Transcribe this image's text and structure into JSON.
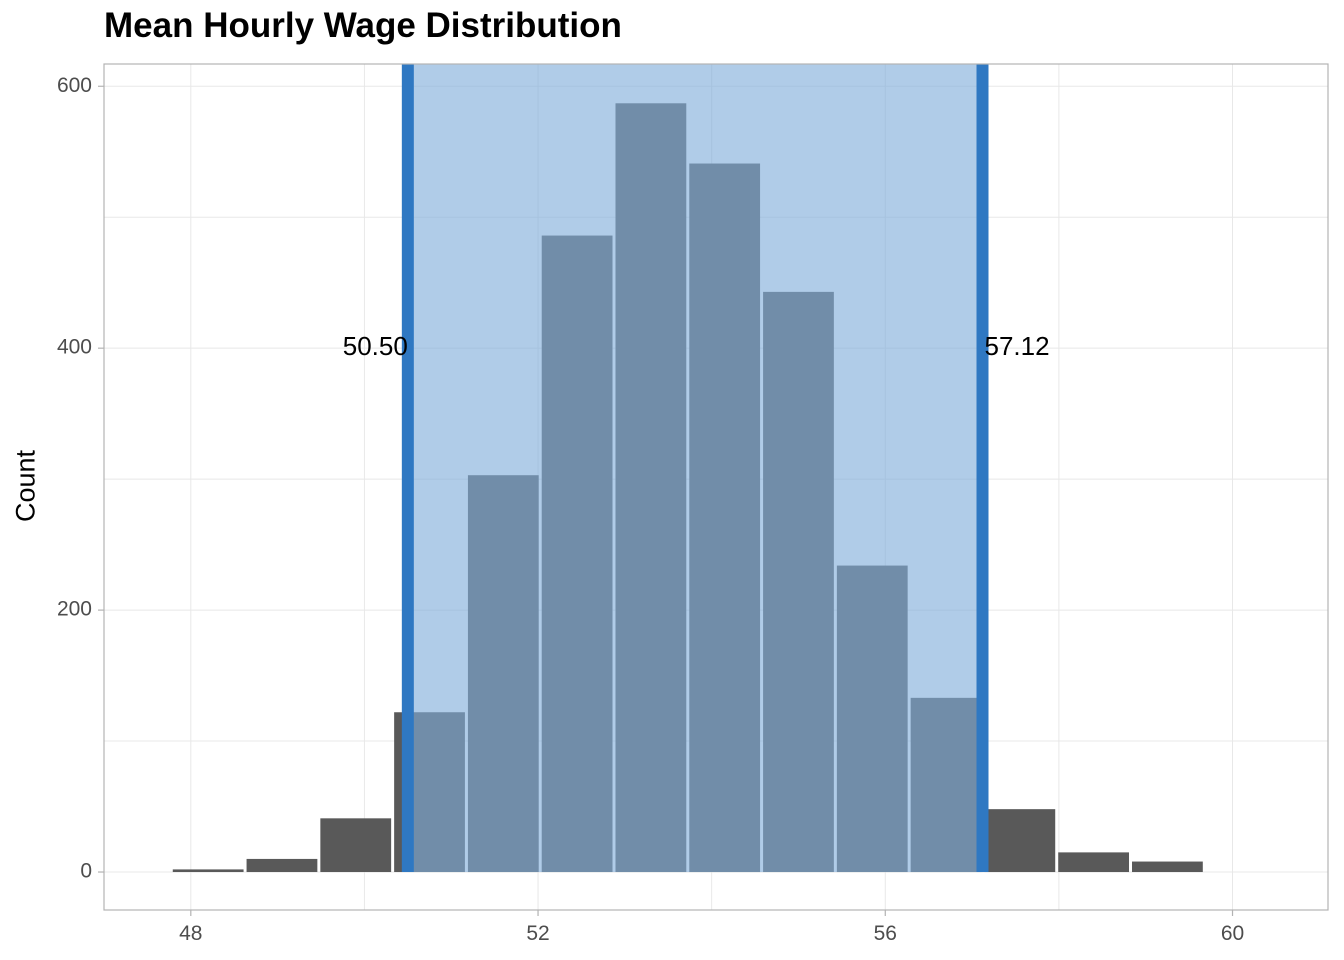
{
  "chart_data": {
    "type": "bar",
    "title": "Mean Hourly Wage Distribution",
    "xlabel": "",
    "ylabel": "Count",
    "xlim": [
      47.0,
      61.1
    ],
    "ylim": [
      -29,
      617
    ],
    "x_ticks": [
      48,
      52,
      56,
      60
    ],
    "y_ticks": [
      0,
      200,
      400,
      600
    ],
    "bin_width": 0.85,
    "bins": [
      {
        "center": 48.2,
        "count": 2
      },
      {
        "center": 49.05,
        "count": 10
      },
      {
        "center": 49.9,
        "count": 41
      },
      {
        "center": 50.75,
        "count": 122
      },
      {
        "center": 51.6,
        "count": 303
      },
      {
        "center": 52.45,
        "count": 486
      },
      {
        "center": 53.3,
        "count": 587
      },
      {
        "center": 54.15,
        "count": 541
      },
      {
        "center": 55.0,
        "count": 443
      },
      {
        "center": 55.85,
        "count": 234
      },
      {
        "center": 56.7,
        "count": 133
      },
      {
        "center": 57.55,
        "count": 48
      },
      {
        "center": 58.4,
        "count": 15
      },
      {
        "center": 59.25,
        "count": 8
      }
    ],
    "interval": {
      "lower": 50.5,
      "upper": 57.12,
      "lower_label": "50.50",
      "upper_label": "57.12"
    },
    "grid": true,
    "colors": {
      "bar": "#595959",
      "bar_in_interval": "#3f6b96",
      "bar_edge": "#ffffff",
      "interval_fill": "#80acda",
      "interval_line": "#2f78c2",
      "grid": "#e8e8e8",
      "panel_border": "#b3b3b3",
      "tick_text": "#4d4d4d"
    }
  }
}
